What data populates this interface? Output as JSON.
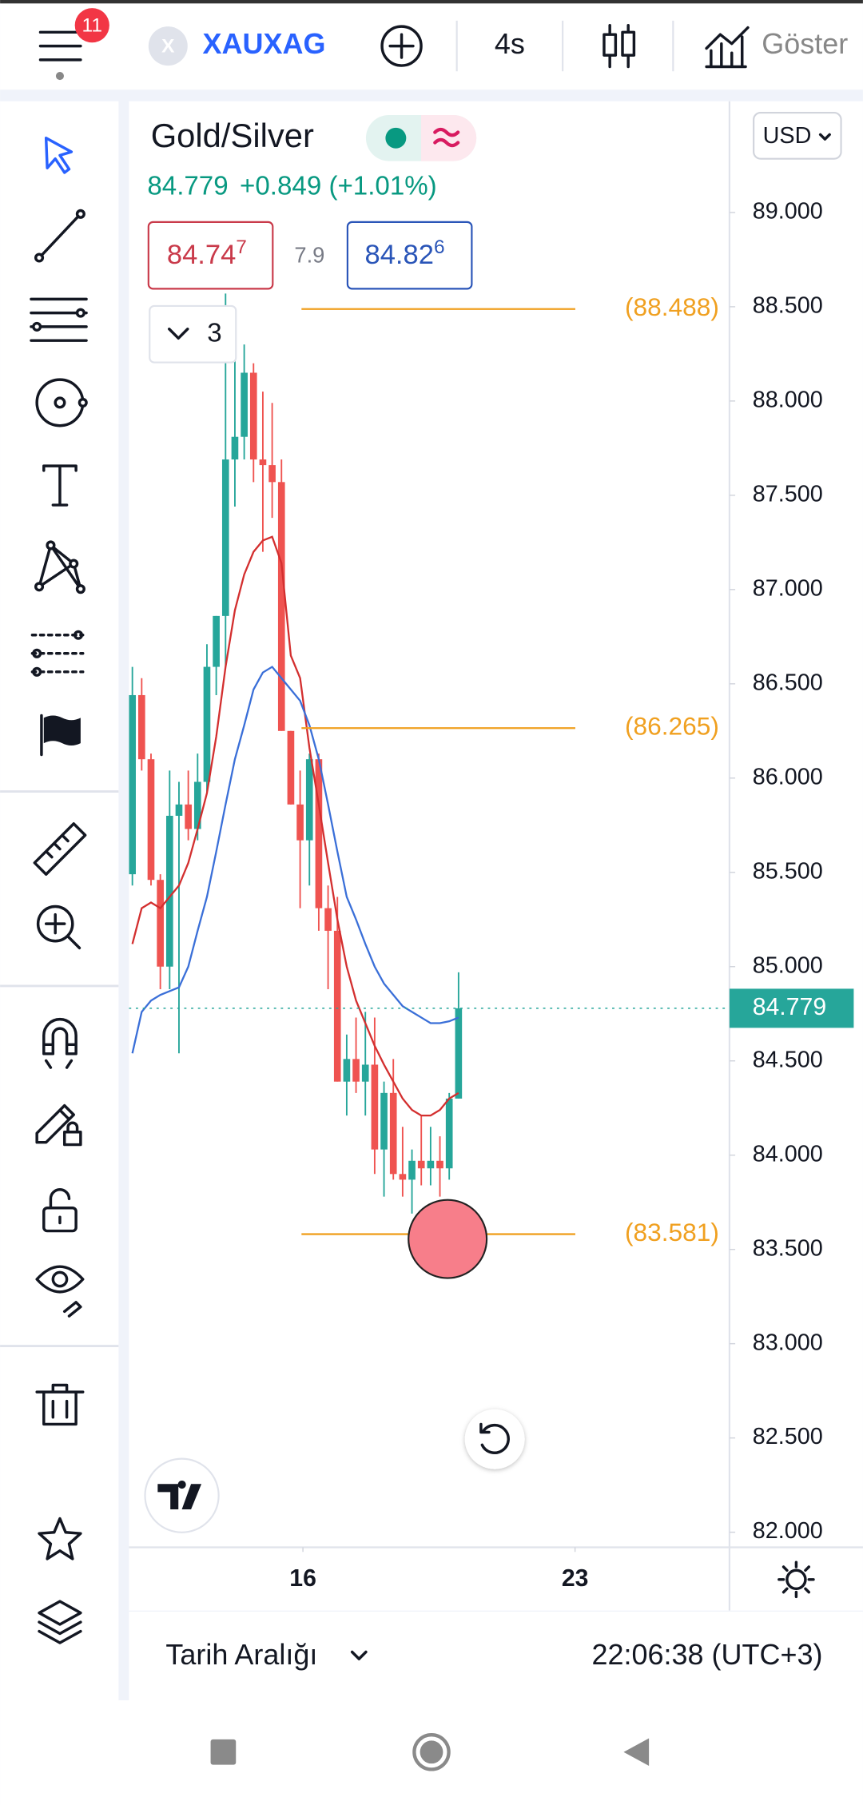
{
  "top_bar": {
    "notification_count": "11",
    "symbol_icon": "X",
    "symbol": "XAUXAG",
    "interval": "4s",
    "indicators_button": "Göster"
  },
  "legend": {
    "title": "Gold/Silver",
    "change": "+0.849 (+1.01%)",
    "bid": {
      "main": "84.74",
      "sup": "7"
    },
    "spread": "7.9",
    "ask": {
      "main": "84.82",
      "sup": "6"
    },
    "indicator_count": "3"
  },
  "currency": "USD",
  "chart_data": {
    "type": "candlestick",
    "last": 84.779,
    "open": [
      85.49,
      86.44,
      86.1,
      85.46,
      85.0,
      85.8,
      85.86,
      85.73,
      85.98,
      86.59,
      86.86,
      87.69,
      87.81,
      88.15,
      87.69,
      87.66,
      87.57,
      86.25,
      85.86,
      85.67,
      86.1,
      85.31,
      85.19,
      84.39,
      84.51,
      84.39,
      84.48,
      84.03,
      84.33,
      83.9,
      83.87,
      83.97,
      83.93,
      83.97,
      83.93,
      84.3
    ],
    "high": [
      86.59,
      86.53,
      86.13,
      85.49,
      86.04,
      85.98,
      86.04,
      86.13,
      86.71,
      86.86,
      88.57,
      88.3,
      88.3,
      88.2,
      88.05,
      87.99,
      87.69,
      86.25,
      86.04,
      86.13,
      86.13,
      85.43,
      85.37,
      84.64,
      84.73,
      84.76,
      84.73,
      84.39,
      84.51,
      84.15,
      84.03,
      84.21,
      84.15,
      84.1,
      84.33,
      84.97
    ],
    "low": [
      85.43,
      86.04,
      85.43,
      84.88,
      84.88,
      84.54,
      85.67,
      85.67,
      85.92,
      86.44,
      86.59,
      87.44,
      87.69,
      87.57,
      87.2,
      87.38,
      86.25,
      85.86,
      85.31,
      85.43,
      85.19,
      84.88,
      84.39,
      84.21,
      84.33,
      84.21,
      83.9,
      83.78,
      83.87,
      83.78,
      83.69,
      83.84,
      83.84,
      83.78,
      83.87,
      84.3
    ],
    "close": [
      86.44,
      86.1,
      85.46,
      85.0,
      85.8,
      85.86,
      85.73,
      85.98,
      86.59,
      86.86,
      87.69,
      87.81,
      88.15,
      87.69,
      87.66,
      87.57,
      86.25,
      85.86,
      85.67,
      86.1,
      85.31,
      85.19,
      84.39,
      84.51,
      84.39,
      84.48,
      84.03,
      84.33,
      83.9,
      83.87,
      83.97,
      83.93,
      83.97,
      83.93,
      84.3,
      84.779
    ],
    "up_color": "#26a69a",
    "down_color": "#ef5350",
    "ma_lines": [
      {
        "color": "#d32f2f",
        "values": [
          85.12,
          85.31,
          85.34,
          85.31,
          85.37,
          85.43,
          85.55,
          85.73,
          85.92,
          86.22,
          86.59,
          86.89,
          87.08,
          87.2,
          87.26,
          87.28,
          87.14,
          86.65,
          86.53,
          86.16,
          85.86,
          85.55,
          85.25,
          85.0,
          84.82,
          84.7,
          84.58,
          84.48,
          84.39,
          84.3,
          84.24,
          84.21,
          84.21,
          84.24,
          84.3,
          84.33
        ]
      },
      {
        "color": "#3a6fd8",
        "values": [
          84.54,
          84.76,
          84.82,
          84.85,
          84.87,
          84.89,
          85.0,
          85.19,
          85.37,
          85.61,
          85.86,
          86.1,
          86.28,
          86.47,
          86.56,
          86.59,
          86.53,
          86.47,
          86.41,
          86.28,
          86.1,
          85.86,
          85.61,
          85.37,
          85.25,
          85.12,
          85.0,
          84.91,
          84.85,
          84.79,
          84.76,
          84.73,
          84.7,
          84.7,
          84.71,
          84.73
        ]
      }
    ],
    "levels": [
      {
        "value": 88.488,
        "label": "(88.488)"
      },
      {
        "value": 86.265,
        "label": "(86.265)"
      },
      {
        "value": 83.581,
        "label": "(83.581)"
      }
    ],
    "level_color": "#f0a020",
    "ylim": [
      81.92,
      89.59
    ],
    "yticks": [
      {
        "value": 82,
        "label": "82.000"
      },
      {
        "value": 82.5,
        "label": "82.500"
      },
      {
        "value": 83,
        "label": "83.000"
      },
      {
        "value": 83.5,
        "label": "83.500"
      },
      {
        "value": 84,
        "label": "84.000"
      },
      {
        "value": 84.5,
        "label": "84.500"
      },
      {
        "value": 85,
        "label": "85.000"
      },
      {
        "value": 85.5,
        "label": "85.500"
      },
      {
        "value": 86,
        "label": "86.000"
      },
      {
        "value": 86.5,
        "label": "86.500"
      },
      {
        "value": 87,
        "label": "87.000"
      },
      {
        "value": 87.5,
        "label": "87.500"
      },
      {
        "value": 88,
        "label": "88.000"
      },
      {
        "value": 88.5,
        "label": "88.500"
      },
      {
        "value": 89,
        "label": "89.000"
      }
    ],
    "xlim": [
      -0.37,
      64.07
    ],
    "xticks": [
      {
        "value": 18.3,
        "label": "16"
      },
      {
        "value": 47.5,
        "label": "23"
      }
    ]
  },
  "bottom_bar": {
    "date_range": "Tarih Aralığı",
    "clock": "22:06:38 (UTC+3)"
  }
}
